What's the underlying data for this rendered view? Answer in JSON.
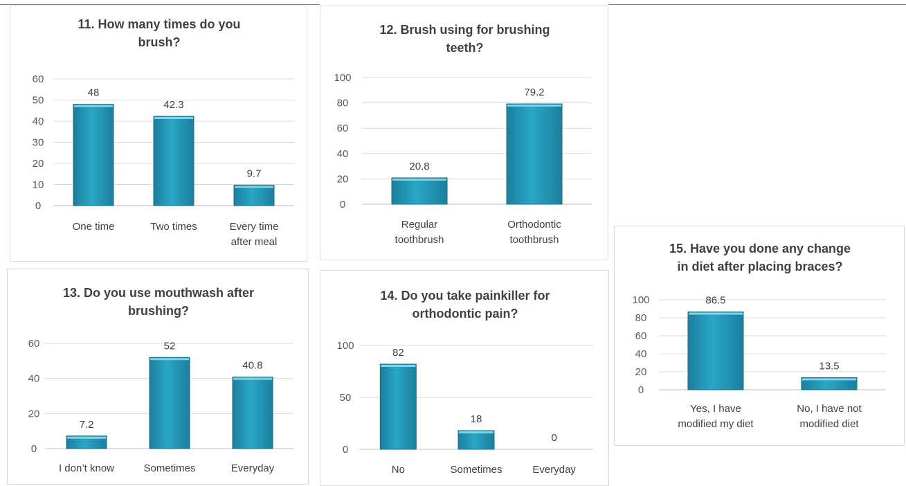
{
  "chart_data": [
    {
      "type": "bar",
      "title_lines": [
        "11. How many times do you",
        "brush?"
      ],
      "categories": [
        [
          "One time"
        ],
        [
          "Two times"
        ],
        [
          "Every time",
          "after meal"
        ]
      ],
      "values": [
        48,
        42.3,
        9.7
      ],
      "value_labels": [
        "48",
        "42.3",
        "9.7"
      ],
      "ylim": [
        0,
        60
      ],
      "yticks": [
        0,
        10,
        20,
        30,
        40,
        50,
        60
      ],
      "ytick_labels": [
        "0",
        "10",
        "20",
        "30",
        "40",
        "50",
        "60"
      ],
      "grid": true,
      "bar_color": "#2aa6c7"
    },
    {
      "type": "bar",
      "title_lines": [
        "12. Brush using for brushing",
        "teeth?"
      ],
      "categories": [
        [
          "Regular",
          "toothbrush"
        ],
        [
          "Orthodontic",
          "toothbrush"
        ]
      ],
      "values": [
        20.8,
        79.2
      ],
      "value_labels": [
        "20.8",
        "79.2"
      ],
      "ylim": [
        0,
        100
      ],
      "yticks": [
        0,
        20,
        40,
        60,
        80,
        100
      ],
      "ytick_labels": [
        "0",
        "20",
        "40",
        "60",
        "80",
        "100"
      ],
      "grid": true,
      "bar_color": "#2aa6c7"
    },
    {
      "type": "bar",
      "title_lines": [
        "13. Do you use mouthwash after",
        "brushing?"
      ],
      "categories": [
        [
          "I don’t know"
        ],
        [
          "Sometimes"
        ],
        [
          "Everyday"
        ]
      ],
      "values": [
        7.2,
        52,
        40.8
      ],
      "value_labels": [
        "7.2",
        "52",
        "40.8"
      ],
      "ylim": [
        0,
        60
      ],
      "yticks": [
        0,
        20,
        40,
        60
      ],
      "ytick_labels": [
        "0",
        "20",
        "40",
        "60"
      ],
      "grid": true,
      "bar_color": "#2aa6c7"
    },
    {
      "type": "bar",
      "title_lines": [
        "14. Do you take painkiller for",
        "orthodontic pain?"
      ],
      "categories": [
        [
          "No"
        ],
        [
          "Sometimes"
        ],
        [
          "Everyday"
        ]
      ],
      "values": [
        82,
        18,
        0
      ],
      "value_labels": [
        "82",
        "18",
        "0"
      ],
      "ylim": [
        0,
        100
      ],
      "yticks": [
        0,
        50,
        100
      ],
      "ytick_labels": [
        "0",
        "50",
        "100"
      ],
      "grid": true,
      "bar_color": "#2aa6c7"
    },
    {
      "type": "bar",
      "title_lines": [
        "15. Have you done any change",
        "in diet after placing braces?"
      ],
      "categories": [
        [
          "Yes, I have",
          "modified my diet"
        ],
        [
          "No, I have not",
          "modified diet"
        ]
      ],
      "values": [
        86.5,
        13.5
      ],
      "value_labels": [
        "86.5",
        "13.5"
      ],
      "ylim": [
        0,
        100
      ],
      "yticks": [
        0,
        20,
        40,
        60,
        80,
        100
      ],
      "ytick_labels": [
        "0",
        "20",
        "40",
        "60",
        "80",
        "100"
      ],
      "grid": true,
      "bar_color": "#2aa6c7"
    }
  ]
}
